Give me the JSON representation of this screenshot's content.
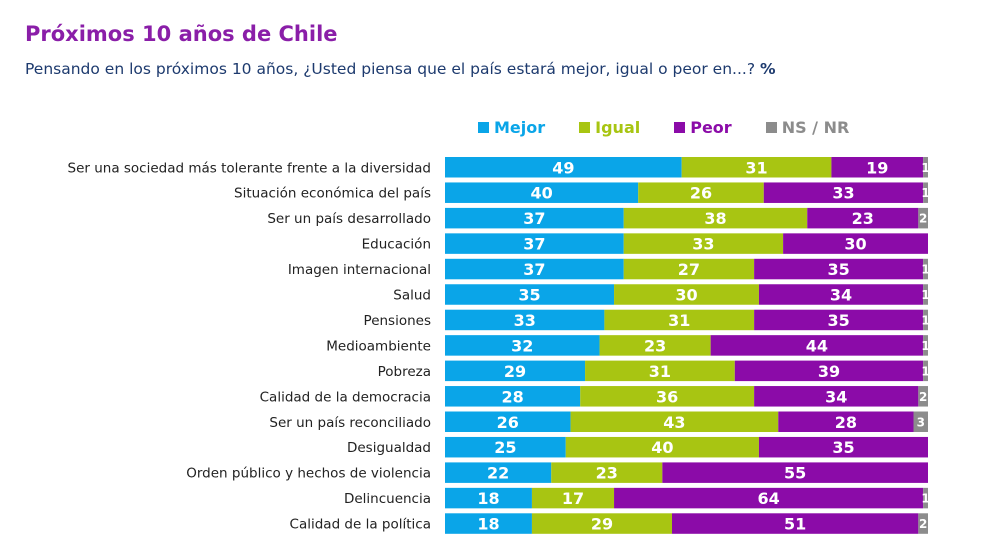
{
  "title": "Próximos 10 años de Chile",
  "subtitle": "Pensando en los próximos 10 años, ¿Usted piensa que el país estará mejor, igual o peor en...?",
  "unit": "%",
  "chart_data": {
    "type": "bar",
    "orientation": "horizontal",
    "stacked": true,
    "legend_position": "top",
    "grid": false,
    "xlim": [
      0,
      100
    ],
    "categories": [
      "Ser una sociedad más tolerante frente a la diversidad",
      "Situación económica del país",
      "Ser un país desarrollado",
      "Educación",
      "Imagen internacional",
      "Salud",
      "Pensiones",
      "Medioambiente",
      "Pobreza",
      "Calidad de la democracia",
      "Ser un país reconciliado",
      "Desigualdad",
      "Orden público y hechos de violencia",
      "Delincuencia",
      "Calidad de la política"
    ],
    "series": [
      {
        "name": "Mejor",
        "color": "#0aa5e8",
        "values": [
          49,
          40,
          37,
          37,
          37,
          35,
          33,
          32,
          29,
          28,
          26,
          25,
          22,
          18,
          18
        ]
      },
      {
        "name": "Igual",
        "color": "#a8c512",
        "values": [
          31,
          26,
          38,
          33,
          27,
          30,
          31,
          23,
          31,
          36,
          43,
          40,
          23,
          17,
          29
        ]
      },
      {
        "name": "Peor",
        "color": "#8b0ba8",
        "values": [
          19,
          33,
          23,
          30,
          35,
          34,
          35,
          44,
          39,
          34,
          28,
          35,
          55,
          64,
          51
        ]
      },
      {
        "name": "NS / NR",
        "color": "#8c8c8c",
        "values": [
          1,
          1,
          2,
          null,
          1,
          1,
          1,
          1,
          1,
          2,
          3,
          null,
          null,
          1,
          2
        ]
      }
    ]
  }
}
